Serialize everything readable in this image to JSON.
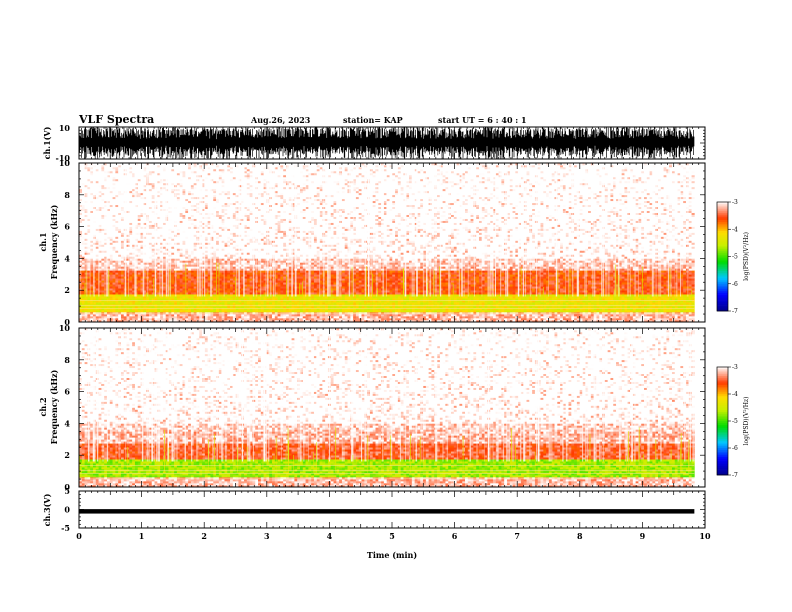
{
  "header": {
    "title": "VLF Spectra",
    "date": "Aug.26, 2023",
    "station": "station= KAP",
    "start": "start UT =  6 : 40 : 1"
  },
  "chart_data": [
    {
      "type": "line",
      "panel": "ch1-waveform",
      "ylabel": "ch.1(V)",
      "ylim": [
        -10,
        10
      ],
      "yticks": [
        "10",
        "-10"
      ],
      "xlim": [
        0,
        10
      ],
      "x_end": 9.83,
      "colors": {
        "trace": "#000000"
      }
    },
    {
      "type": "heatmap",
      "panel": "ch1-spectrogram",
      "ylabel": "ch.1\nFrequency (kHz)",
      "ylim": [
        0,
        10
      ],
      "yticks": [
        "0",
        "2",
        "4",
        "6",
        "8",
        "10"
      ],
      "xlim": [
        0,
        10
      ],
      "x_end": 9.83,
      "colorbar": {
        "label": "log(PSD)(V²/Hz)",
        "range": [
          -7,
          -3
        ],
        "ticks": [
          "-3",
          "-4",
          "-5",
          "-6",
          "-7"
        ]
      },
      "bands": [
        {
          "from": 0,
          "to": 0.6,
          "level": -3.2
        },
        {
          "from": 0.6,
          "to": 1.8,
          "level": -4.3
        },
        {
          "from": 1.8,
          "to": 3.2,
          "level": -3.6
        },
        {
          "from": 3.2,
          "to": 10,
          "level": -3.2
        }
      ]
    },
    {
      "type": "heatmap",
      "panel": "ch2-spectrogram",
      "ylabel": "ch.2\nFrequency (kHz)",
      "ylim": [
        0,
        10
      ],
      "yticks": [
        "0",
        "2",
        "4",
        "6",
        "8",
        "10"
      ],
      "xlim": [
        0,
        10
      ],
      "x_end": 9.83,
      "colorbar": {
        "label": "log(PSD)(V²/Hz)",
        "range": [
          -7,
          -3
        ],
        "ticks": [
          "-3",
          "-4",
          "-5",
          "-6",
          "-7"
        ]
      },
      "bands": [
        {
          "from": 0,
          "to": 0.6,
          "level": -3.2
        },
        {
          "from": 0.6,
          "to": 1.8,
          "level": -4.7
        },
        {
          "from": 1.8,
          "to": 2.8,
          "level": -3.5
        },
        {
          "from": 2.8,
          "to": 10,
          "level": -3.2
        }
      ]
    },
    {
      "type": "line",
      "panel": "ch3-waveform",
      "ylabel": "ch.3(V)",
      "ylim": [
        -5,
        5
      ],
      "yticks": [
        "5",
        "0",
        "-5"
      ],
      "xlim": [
        0,
        10
      ],
      "x_end": 9.83,
      "values": {
        "center": -0.5,
        "amplitude": 0.6
      },
      "xlabel": "Time (min)",
      "xticks": [
        "0",
        "1",
        "2",
        "3",
        "4",
        "5",
        "6",
        "7",
        "8",
        "9",
        "10"
      ],
      "colors": {
        "trace": "#000000"
      }
    }
  ]
}
